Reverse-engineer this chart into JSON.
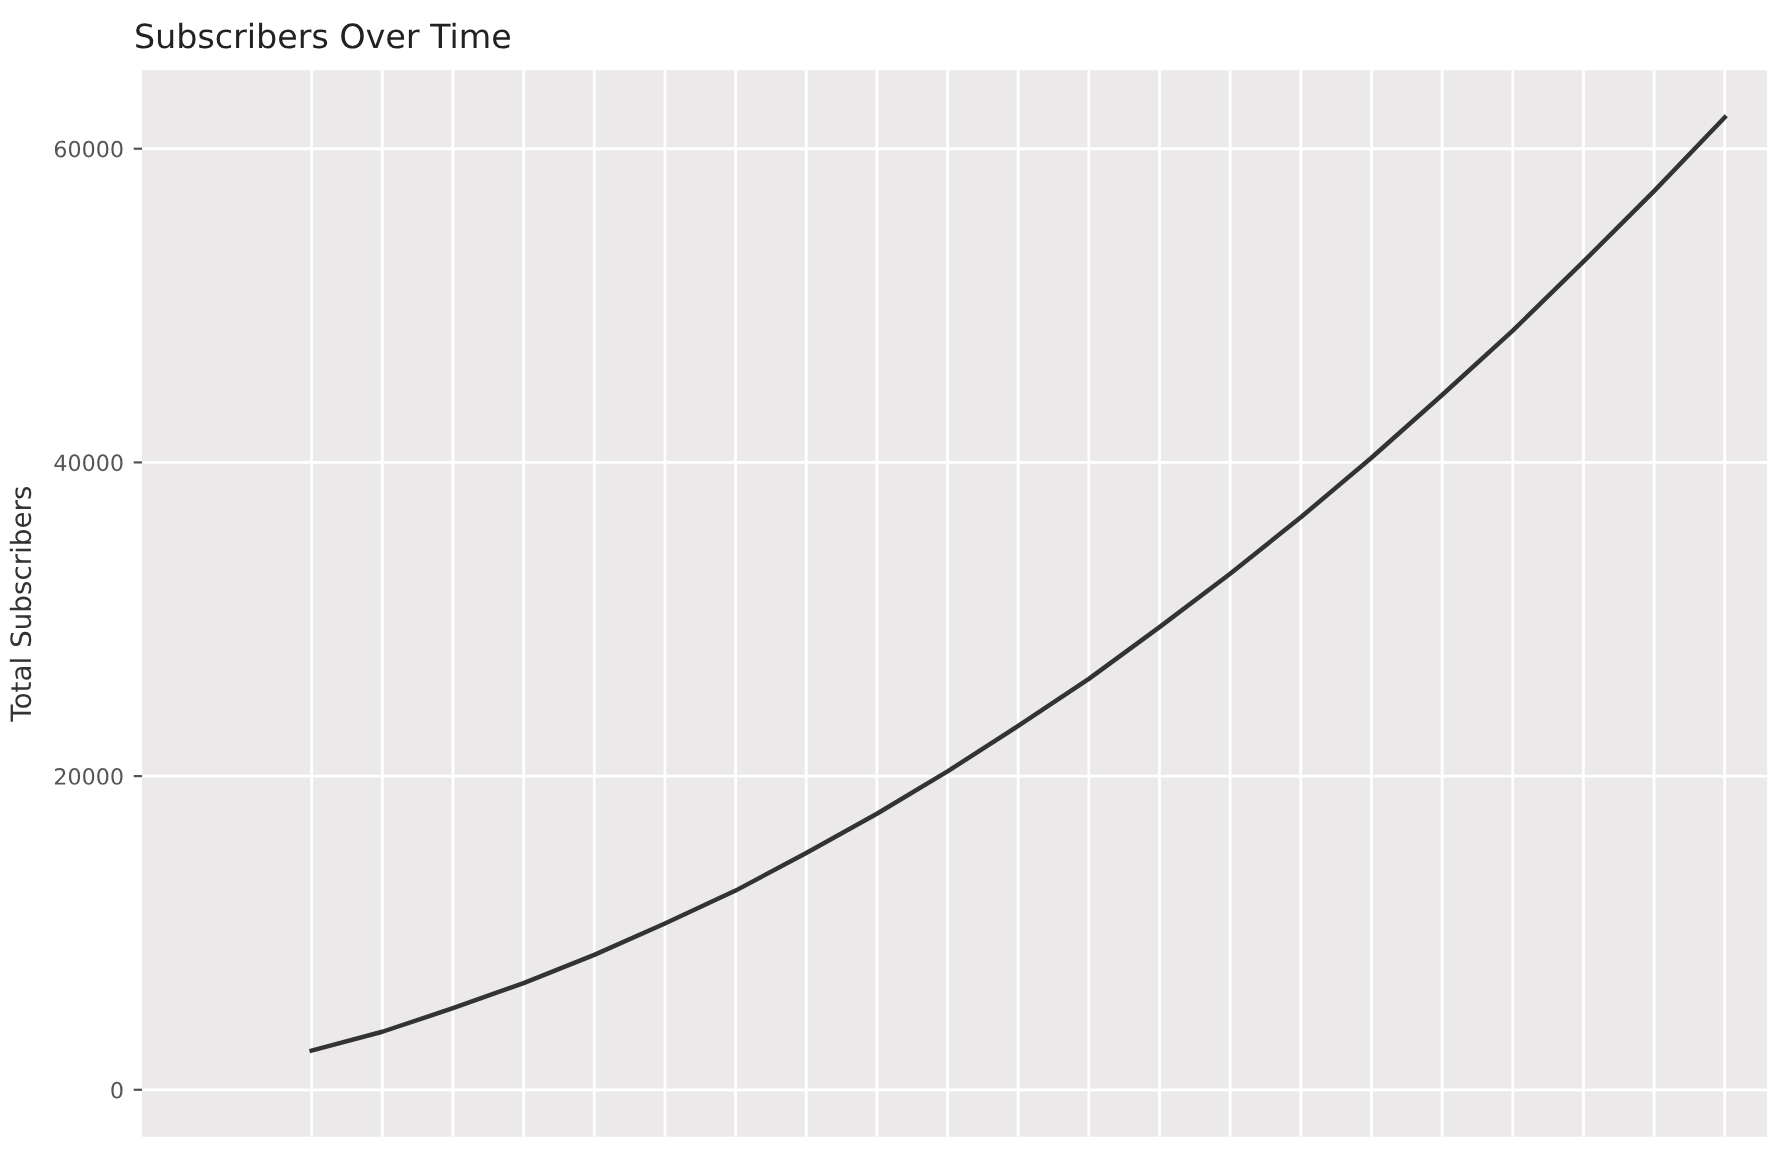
{
  "chart_data": {
    "type": "line",
    "title": "Subscribers Over Time",
    "ylabel": "Total Subscribers",
    "categories": [
      null,
      null,
      null,
      null,
      null,
      null,
      null,
      null,
      null,
      null,
      null,
      null,
      null,
      null,
      null,
      null,
      null,
      null,
      null,
      null,
      null
    ],
    "series": [
      {
        "color": "#333333",
        "values": [
          2500,
          3700,
          5200,
          6800,
          8600,
          10600,
          12700,
          15100,
          17600,
          20300,
          23200,
          26200,
          29500,
          32900,
          36500,
          40300,
          44300,
          48400,
          52800,
          57300,
          62000
        ]
      }
    ],
    "ylim": [
      -3000,
      65000
    ],
    "yticks": [
      0,
      20000,
      40000,
      60000
    ],
    "grid": true,
    "marker": "none",
    "line_style": "solid"
  }
}
